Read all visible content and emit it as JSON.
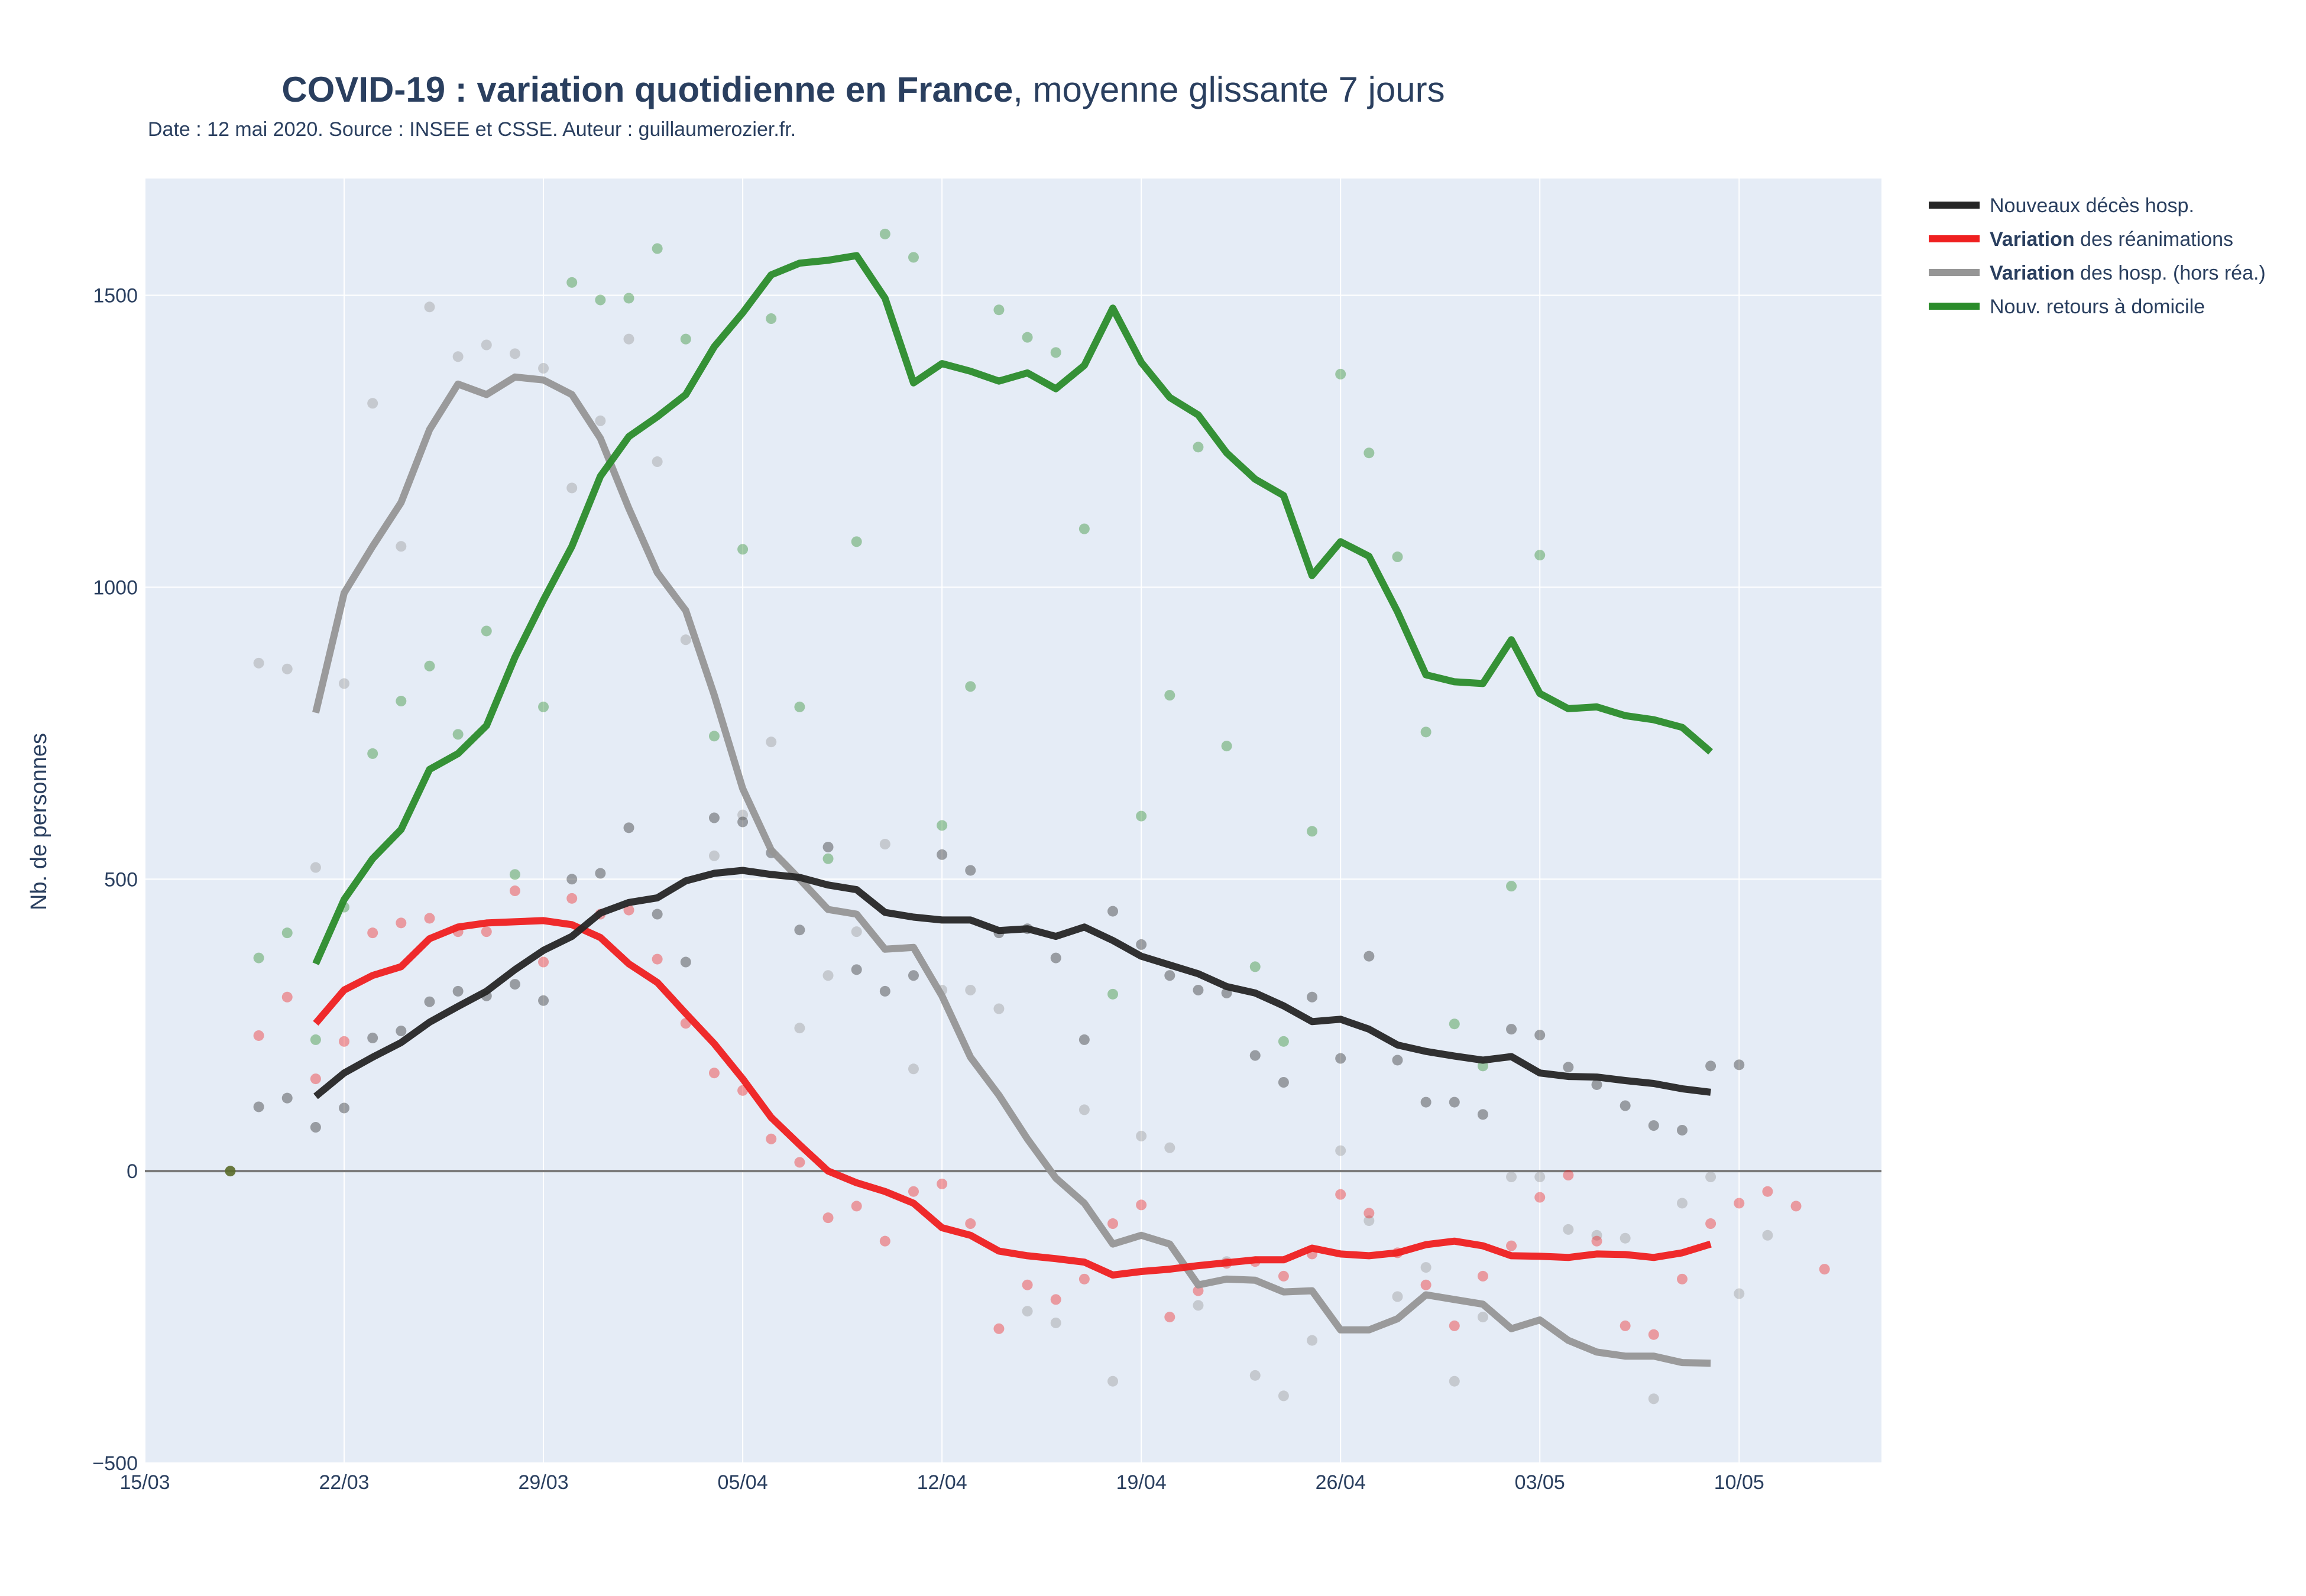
{
  "colors": {
    "deces": "#262626",
    "rea": "#ef2020",
    "hosp": "#969696",
    "rad": "#2b8c2b",
    "plot_bg": "#e5ecf6",
    "grid": "#ffffff",
    "zero_line": "#7a7a7a"
  },
  "chart_data": {
    "type": "line",
    "title_bold": "COVID-19 : variation quotidienne en France",
    "title_rest": ", moyenne glissante 7 jours",
    "subtitle": "Date : 12 mai 2020. Source : INSEE et CSSE. Auteur : guillaumerozier.fr.",
    "xlabel": "",
    "ylabel": "Nb. de personnes",
    "x_start": "2020-03-15",
    "x_tick_labels": [
      "15/03",
      "22/03",
      "29/03",
      "05/04",
      "12/04",
      "19/04",
      "26/04",
      "03/05",
      "10/05"
    ],
    "xlim": [
      "2020-03-15",
      "2020-05-15"
    ],
    "ylim": [
      -500,
      1700
    ],
    "y_tick_values": [
      -500,
      0,
      500,
      1000,
      1500
    ],
    "y_tick_labels": [
      "−500",
      "0",
      "500",
      "1000",
      "1500"
    ],
    "grid": true,
    "legend_position": "top-right, outside plot",
    "legend": [
      {
        "key": "deces",
        "bold": "",
        "rest": "Nouveaux décès hosp."
      },
      {
        "key": "rea",
        "bold": "Variation",
        "rest": " des réanimations"
      },
      {
        "key": "hosp",
        "bold": "Variation",
        "rest": " des hosp. (hors réa.)"
      },
      {
        "key": "rad",
        "bold": "",
        "rest": "Nouv. retours à domicile"
      }
    ],
    "series": [
      {
        "key": "hosp",
        "name": "Variation des hosp. (hors réa.)",
        "x_first": "2020-03-21",
        "line": [
          785,
          990,
          1070,
          1145,
          1270,
          1348,
          1330,
          1360,
          1355,
          1330,
          1255,
          1135,
          1025,
          960,
          815,
          655,
          550,
          500,
          448,
          440,
          380,
          383,
          300,
          195,
          130,
          55,
          -12,
          -55,
          -125,
          -110,
          -125,
          -195,
          -185,
          -187,
          -207,
          -205,
          -272,
          -272,
          -253,
          -212,
          -220,
          -228,
          -270,
          -255,
          -290,
          -310,
          -317,
          -317,
          -328,
          -329
        ],
        "points_x_first": "2020-03-19",
        "points": [
          870,
          860,
          520,
          835,
          1315,
          1070,
          1480,
          1395,
          1415,
          1400,
          1375,
          1170,
          1285,
          1425,
          1215,
          910,
          540,
          610,
          735,
          245,
          335,
          410,
          560,
          175,
          310,
          310,
          278,
          -240,
          -260,
          105,
          -360,
          60,
          40,
          -230,
          -155,
          -350,
          -385,
          -290,
          35,
          -85,
          -215,
          -165,
          -360,
          -250,
          -10,
          -10,
          -100,
          -110,
          -115,
          -390,
          -55,
          -10,
          -210,
          -110
        ]
      },
      {
        "key": "rea",
        "name": "Variation des réanimations",
        "x_first": "2020-03-21",
        "line": [
          253,
          310,
          335,
          350,
          398,
          418,
          425,
          427,
          429,
          422,
          400,
          355,
          323,
          270,
          218,
          158,
          92,
          45,
          0,
          -20,
          -35,
          -55,
          -97,
          -110,
          -137,
          -145,
          -150,
          -156,
          -178,
          -172,
          -168,
          -162,
          -157,
          -152,
          -152,
          -132,
          -142,
          -145,
          -140,
          -126,
          -120,
          -128,
          -145,
          -146,
          -148,
          -142,
          -143,
          -148,
          -140,
          -125
        ],
        "points_x_first": "2020-03-19",
        "points": [
          232,
          298,
          158,
          222,
          408,
          425,
          433,
          410,
          410,
          480,
          358,
          467,
          440,
          447,
          363,
          253,
          168,
          138,
          55,
          15,
          -80,
          -60,
          -120,
          -35,
          -22,
          -90,
          -270,
          -195,
          -220,
          -185,
          -90,
          -58,
          -250,
          -205,
          -158,
          -155,
          -180,
          -142,
          -40,
          -72,
          -140,
          -195,
          -265,
          -180,
          -128,
          -45,
          -7,
          -120,
          -265,
          -280,
          -185,
          -90,
          -55,
          -35,
          -60,
          -168
        ]
      },
      {
        "key": "deces",
        "name": "Nouveaux décès hosp.",
        "x_first": "2020-03-21",
        "line": [
          128,
          168,
          195,
          220,
          255,
          282,
          308,
          345,
          378,
          402,
          442,
          460,
          468,
          497,
          510,
          515,
          508,
          503,
          490,
          482,
          443,
          435,
          430,
          430,
          412,
          415,
          402,
          418,
          395,
          368,
          353,
          338,
          316,
          305,
          283,
          256,
          260,
          243,
          216,
          205,
          197,
          190,
          196,
          168,
          162,
          161,
          155,
          150,
          141,
          135
        ],
        "points_x_first": "2020-03-19",
        "points": [
          110,
          125,
          75,
          108,
          228,
          240,
          290,
          308,
          300,
          320,
          292,
          500,
          510,
          588,
          440,
          358,
          605,
          598,
          545,
          413,
          555,
          345,
          308,
          335,
          542,
          515,
          408,
          415,
          365,
          225,
          445,
          388,
          335,
          310,
          305,
          198,
          152,
          298,
          193,
          368,
          190,
          118,
          118,
          97,
          243,
          233,
          178,
          148,
          112,
          78,
          70,
          180,
          182
        ]
      },
      {
        "key": "rad",
        "name": "Nouv. retours à domicile",
        "x_first": "2020-03-21",
        "line": [
          355,
          465,
          535,
          585,
          688,
          715,
          763,
          880,
          978,
          1070,
          1190,
          1258,
          1292,
          1330,
          1412,
          1470,
          1535,
          1555,
          1560,
          1568,
          1495,
          1350,
          1383,
          1370,
          1353,
          1367,
          1340,
          1380,
          1478,
          1385,
          1325,
          1295,
          1230,
          1185,
          1157,
          1020,
          1078,
          1053,
          958,
          850,
          838,
          835,
          910,
          818,
          792,
          795,
          780,
          773,
          760,
          718
        ],
        "points_x_first": "2020-03-19",
        "points": [
          365,
          408,
          225,
          452,
          715,
          805,
          865,
          748,
          925,
          508,
          795,
          1522,
          1492,
          1495,
          1580,
          1425,
          745,
          1065,
          1460,
          795,
          535,
          1078,
          1605,
          1565,
          592,
          830,
          1475,
          1428,
          1402,
          1100,
          303,
          608,
          815,
          1240,
          728,
          350,
          222,
          582,
          1365,
          1230,
          1052,
          752,
          252,
          180,
          488,
          1055
        ]
      },
      {
        "key": "marker",
        "name": "",
        "points_x_first": "2020-03-18",
        "points": [
          0
        ]
      }
    ]
  }
}
